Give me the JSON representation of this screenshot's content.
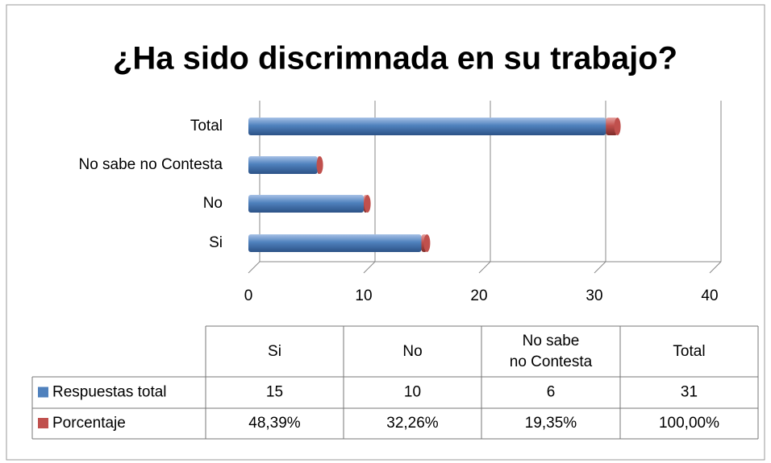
{
  "chart_data": {
    "type": "bar",
    "orientation": "horizontal",
    "stacked": true,
    "title": "¿Ha sido discrimnada en su trabajo?",
    "categories": [
      "Si",
      "No",
      "No sabe no Contesta",
      "Total"
    ],
    "series": [
      {
        "name": "Respuestas total",
        "color": "#4f81bd",
        "values": [
          15,
          10,
          6,
          31
        ]
      },
      {
        "name": "Porcentaje",
        "color": "#c0504d",
        "values": [
          0.4839,
          0.3226,
          0.1935,
          1
        ],
        "value_labels": [
          "48,39%",
          "32,26%",
          "19,35%",
          "100,00%"
        ]
      }
    ],
    "xlim": [
      0,
      40
    ],
    "xticks": [
      0,
      10,
      20,
      30,
      40
    ],
    "grid": true,
    "data_table": true
  }
}
